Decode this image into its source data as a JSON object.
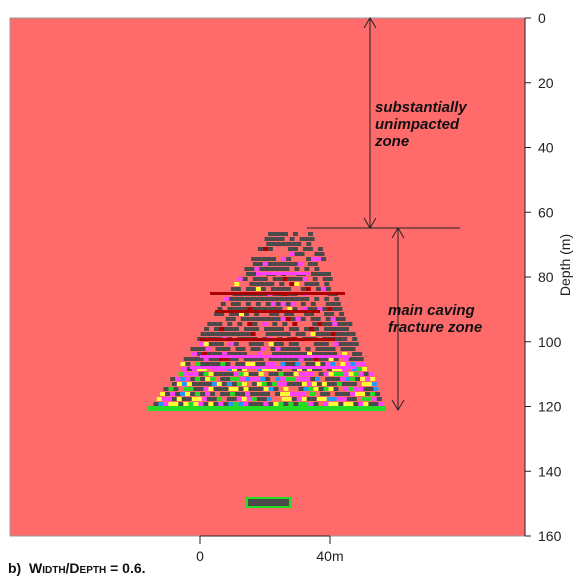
{
  "caption": {
    "part": "b)",
    "label": "Width/Depth = 0.6."
  },
  "colors": {
    "background": "#ff6b6b",
    "cave_gray": "#4a4a4a",
    "magenta": "#ff40ff",
    "yellow": "#ffff33",
    "green": "#22dd22",
    "blue": "#2299ff",
    "darkred": "#aa0000"
  },
  "chart_data": {
    "type": "diagram",
    "ylabel": "Depth (m)",
    "ylim": [
      0,
      160
    ],
    "yticks": [
      0,
      20,
      40,
      60,
      80,
      100,
      120,
      140,
      160
    ],
    "scale_bar": {
      "start_label": "0",
      "end_label": "40m"
    },
    "annotations": [
      {
        "lines": [
          "substantially",
          "unimpacted",
          "zone"
        ],
        "from_depth": 0,
        "to_depth": 64
      },
      {
        "lines": [
          "main caving",
          "fracture zone"
        ],
        "from_depth": 64,
        "to_depth": 120
      }
    ],
    "zone_boundary_depth": 64,
    "caving_base_depth": 120,
    "extraction_block_depth": 151
  }
}
